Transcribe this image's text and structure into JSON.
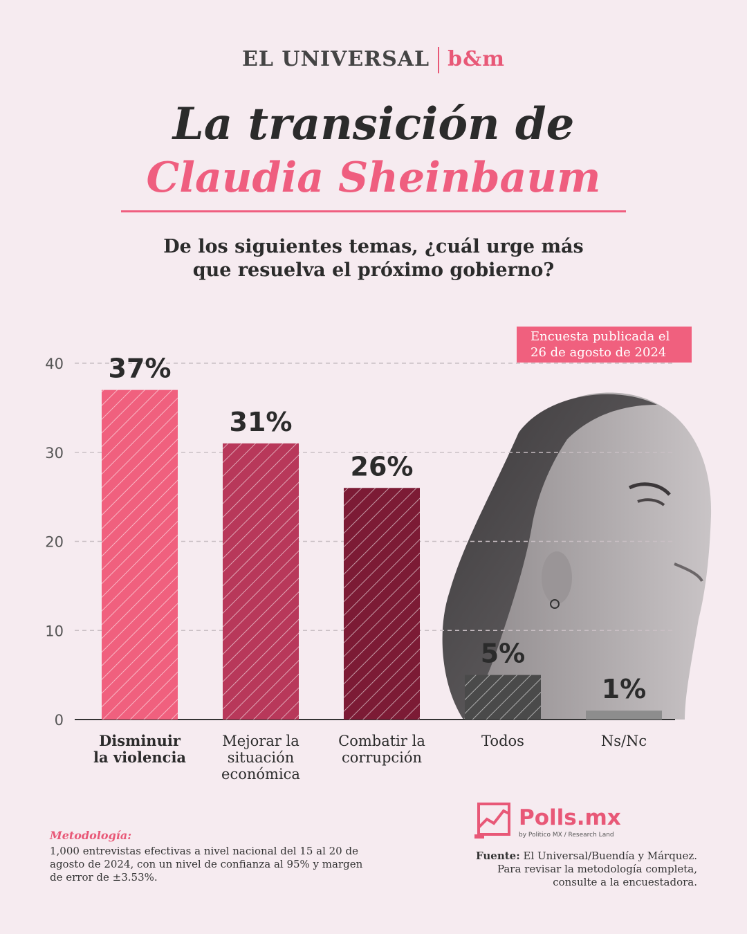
{
  "header": {
    "brand_left": "EL UNIVERSAL",
    "brand_right": "b&m",
    "title_line1": "La transición de",
    "title_line2": "Claudia Sheinbaum",
    "question_line1": "De los siguientes temas, ¿cuál urge más",
    "question_line2": "que resuelva el próximo gobierno?",
    "badge_line1": "Encuesta publicada el",
    "badge_line2": "26 de agosto de 2024"
  },
  "chart_data": {
    "type": "bar",
    "categories": [
      [
        "Disminuir",
        "la violencia"
      ],
      [
        "Mejorar la",
        "situación",
        "económica"
      ],
      [
        "Combatir la",
        "corrupción"
      ],
      [
        "Todos"
      ],
      [
        "Ns/Nc"
      ]
    ],
    "values": [
      37,
      31,
      26,
      5,
      1
    ],
    "value_labels": [
      "37%",
      "31%",
      "26%",
      "5%",
      "1%"
    ],
    "colors": [
      "#f0607e",
      "#b8385a",
      "#7c1b35",
      "#4a4a4a",
      "#8d8d8d"
    ],
    "yticks": [
      0,
      10,
      20,
      30,
      40
    ],
    "ylim": [
      0,
      40
    ],
    "grid": true,
    "xlabel": "",
    "ylabel": ""
  },
  "footer": {
    "method_title": "Metodología:",
    "method_line1": "1,000 entrevistas efectivas a nivel nacional del 15 al 20 de",
    "method_line2": "agosto de 2024, con un nivel de confianza al 95% y margen",
    "method_line3": "de error de ±3.53%.",
    "logo_text": "Polls.mx",
    "logo_sub": "by Politico MX / Research Land",
    "source_label": "Fuente:",
    "source_text": "El Universal/Buendía y Márquez.",
    "source_line2": "Para revisar la metodología completa,",
    "source_line3": "consulte a la encuestadora."
  }
}
